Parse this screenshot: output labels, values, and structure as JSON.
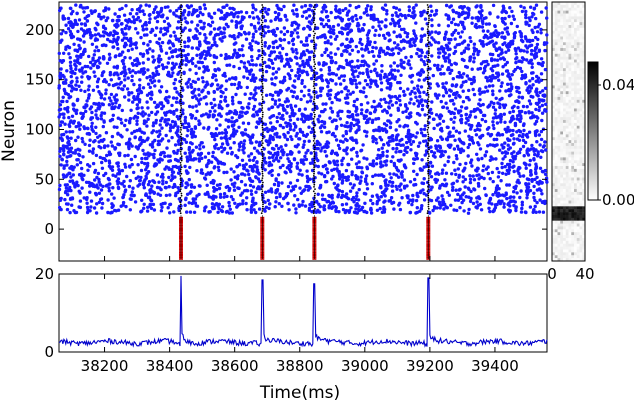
{
  "chart_data": [
    {
      "type": "scatter",
      "description_kind": "raster",
      "ylabel": "Neuron",
      "xlim": [
        38060,
        39560
      ],
      "ylim": [
        -32,
        228
      ],
      "yticks": [
        0,
        50,
        100,
        150,
        200
      ],
      "ytick_labels": [
        "0",
        "50",
        "100",
        "150",
        "200"
      ],
      "colors": {
        "background_neurons": "#1a1aff",
        "stimulus_neurons": "#cc0000",
        "column_marks": "#000000"
      },
      "background_neuron_range": [
        16,
        225
      ],
      "stimulus_neuron_range": [
        -30,
        13
      ],
      "event_times": [
        38435,
        38685,
        38845,
        39195
      ],
      "tick_labels_x": []
    },
    {
      "type": "heatmap",
      "colorbar_ticks": [
        0.0,
        0.04
      ],
      "colorbar_tick_labels": [
        "0.00",
        "0.04"
      ],
      "xticks": [
        0,
        40
      ],
      "xtick_labels": [
        "0",
        "40"
      ],
      "colormap": "gray_r"
    },
    {
      "type": "line",
      "xlabel": "Time(ms)",
      "xlim": [
        38060,
        39560
      ],
      "ylim": [
        0,
        20
      ],
      "yticks": [
        0,
        20
      ],
      "ytick_labels": [
        "0",
        "20"
      ],
      "xticks": [
        38200,
        38400,
        38600,
        38800,
        39000,
        39200,
        39400
      ],
      "xtick_labels": [
        "38200",
        "38400",
        "38600",
        "38800",
        "39000",
        "39200",
        "39400"
      ],
      "series": [
        {
          "color": "#0000cc",
          "baseline": 2.5,
          "peaks": [
            {
              "x": 38435,
              "y": 19.5
            },
            {
              "x": 38685,
              "y": 18.5
            },
            {
              "x": 38845,
              "y": 17.5
            },
            {
              "x": 39195,
              "y": 19.0
            }
          ]
        }
      ]
    }
  ]
}
